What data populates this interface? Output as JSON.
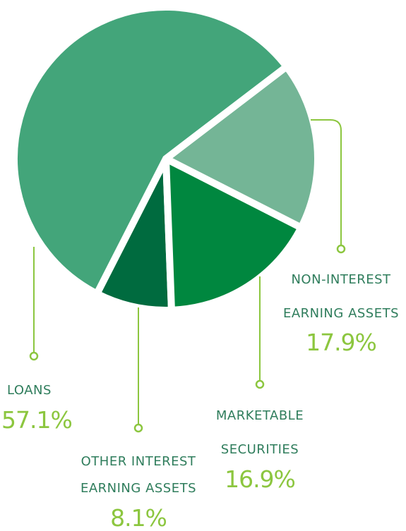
{
  "chart_data": {
    "type": "pie",
    "categories": [
      "LOANS",
      "NON-INTEREST EARNING ASSETS",
      "MARKETABLE SECURITIES",
      "OTHER INTEREST EARNING ASSETS"
    ],
    "values": [
      57.1,
      17.9,
      16.9,
      8.1
    ],
    "value_labels": [
      "57.1%",
      "17.9%",
      "16.9%",
      "8.1%"
    ],
    "colors": [
      "#43a57a",
      "#74b596",
      "#00873f",
      "#006b3f"
    ]
  }
}
